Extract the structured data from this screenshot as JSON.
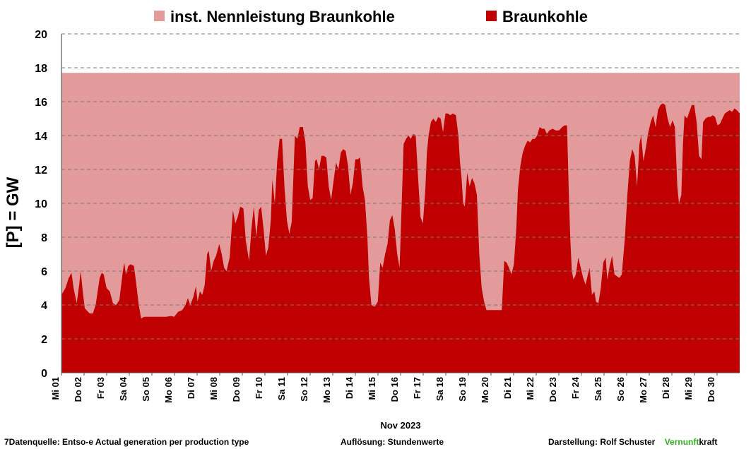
{
  "chart_data": {
    "type": "area",
    "title": "",
    "ylabel": "[P]  =  GW",
    "xlabel": "Nov 2023",
    "ylim": [
      0,
      20
    ],
    "yticks": [
      0,
      2,
      4,
      6,
      8,
      10,
      12,
      14,
      16,
      18,
      20
    ],
    "grid": "horizontal dashed",
    "legend_position": "top",
    "colors": {
      "capacity": "#e39a9a",
      "generation": "#c00000"
    },
    "x_tick_labels": [
      "Mi 01",
      "Do 02",
      "Fr 03",
      "Sa 04",
      "So 05",
      "Mo 06",
      "Di 07",
      "Mi 08",
      "Do 09",
      "Fr 10",
      "Sa 11",
      "So 12",
      "Mo 13",
      "Di 14",
      "Mi 15",
      "Do 16",
      "Fr 17",
      "Sa 18",
      "So 19",
      "Mo 20",
      "Di 21",
      "Mi 22",
      "Do 23",
      "Fr 24",
      "Sa 25",
      "So 26",
      "Mo 27",
      "Di 28",
      "Mi 29",
      "Do 30"
    ],
    "series": [
      {
        "name": "inst. Nennleistung Braunkohle",
        "kind": "constant",
        "value": 17.7
      },
      {
        "name": "Braunkohle",
        "kind": "area",
        "x_unit": "day of November 2023 (day start)",
        "points": [
          [
            0.0,
            4.6
          ],
          [
            0.1,
            5.0
          ],
          [
            0.18,
            5.6
          ],
          [
            0.25,
            5.9
          ],
          [
            0.3,
            5.0
          ],
          [
            0.38,
            4.1
          ],
          [
            0.44,
            5.2
          ],
          [
            0.48,
            6.0
          ],
          [
            0.52,
            5.0
          ],
          [
            0.58,
            3.8
          ],
          [
            0.7,
            3.5
          ],
          [
            0.78,
            3.5
          ],
          [
            0.85,
            4.0
          ],
          [
            0.95,
            5.6
          ],
          [
            1.0,
            5.9
          ],
          [
            1.05,
            5.8
          ],
          [
            1.12,
            5.0
          ],
          [
            1.2,
            4.8
          ],
          [
            1.28,
            4.1
          ],
          [
            1.36,
            4.0
          ],
          [
            1.44,
            4.3
          ],
          [
            1.52,
            5.9
          ],
          [
            1.56,
            6.5
          ],
          [
            1.6,
            5.8
          ],
          [
            1.66,
            6.3
          ],
          [
            1.72,
            6.4
          ],
          [
            1.8,
            6.3
          ],
          [
            1.86,
            5.2
          ],
          [
            1.92,
            4.0
          ],
          [
            1.98,
            3.2
          ],
          [
            2.05,
            3.3
          ],
          [
            2.15,
            3.3
          ],
          [
            2.3,
            3.3
          ],
          [
            2.45,
            3.3
          ],
          [
            2.6,
            3.3
          ],
          [
            2.72,
            3.35
          ],
          [
            2.8,
            3.3
          ],
          [
            2.9,
            3.6
          ],
          [
            3.0,
            3.7
          ],
          [
            3.08,
            4.0
          ],
          [
            3.14,
            4.4
          ],
          [
            3.2,
            4.0
          ],
          [
            3.28,
            4.5
          ],
          [
            3.34,
            5.1
          ],
          [
            3.38,
            4.2
          ],
          [
            3.44,
            4.8
          ],
          [
            3.5,
            4.6
          ],
          [
            3.56,
            5.2
          ],
          [
            3.62,
            7.0
          ],
          [
            3.66,
            7.2
          ],
          [
            3.72,
            6.0
          ],
          [
            3.78,
            6.6
          ],
          [
            3.84,
            6.9
          ],
          [
            3.92,
            7.6
          ],
          [
            3.98,
            7.0
          ],
          [
            4.04,
            6.2
          ],
          [
            4.1,
            6.0
          ],
          [
            4.18,
            6.8
          ],
          [
            4.26,
            9.6
          ],
          [
            4.32,
            8.8
          ],
          [
            4.38,
            9.2
          ],
          [
            4.44,
            9.8
          ],
          [
            4.52,
            9.7
          ],
          [
            4.58,
            7.8
          ],
          [
            4.66,
            6.6
          ],
          [
            4.72,
            8.5
          ],
          [
            4.78,
            9.8
          ],
          [
            4.84,
            8.0
          ],
          [
            4.9,
            9.6
          ],
          [
            4.96,
            9.8
          ],
          [
            5.02,
            8.5
          ],
          [
            5.08,
            6.9
          ],
          [
            5.14,
            7.4
          ],
          [
            5.2,
            9.0
          ],
          [
            5.24,
            11.4
          ],
          [
            5.3,
            10.0
          ],
          [
            5.36,
            12.5
          ],
          [
            5.42,
            13.8
          ],
          [
            5.48,
            13.8
          ],
          [
            5.54,
            11.0
          ],
          [
            5.6,
            9.0
          ],
          [
            5.66,
            8.2
          ],
          [
            5.72,
            8.9
          ],
          [
            5.8,
            14.0
          ],
          [
            5.86,
            13.8
          ],
          [
            5.92,
            14.5
          ],
          [
            6.0,
            14.5
          ],
          [
            6.06,
            13.6
          ],
          [
            6.12,
            11.0
          ],
          [
            6.18,
            10.2
          ],
          [
            6.24,
            10.3
          ],
          [
            6.3,
            12.5
          ],
          [
            6.34,
            12.6
          ],
          [
            6.4,
            12.0
          ],
          [
            6.46,
            12.8
          ],
          [
            6.52,
            12.8
          ],
          [
            6.58,
            12.7
          ],
          [
            6.64,
            11.0
          ],
          [
            6.7,
            10.2
          ],
          [
            6.76,
            11.3
          ],
          [
            6.82,
            12.4
          ],
          [
            6.88,
            12.0
          ],
          [
            6.94,
            13.0
          ],
          [
            7.0,
            13.2
          ],
          [
            7.06,
            13.1
          ],
          [
            7.12,
            12.2
          ],
          [
            7.18,
            10.5
          ],
          [
            7.24,
            11.2
          ],
          [
            7.3,
            12.6
          ],
          [
            7.36,
            12.6
          ],
          [
            7.42,
            12.7
          ],
          [
            7.48,
            11.0
          ],
          [
            7.54,
            10.2
          ],
          [
            7.6,
            8.0
          ],
          [
            7.64,
            5.6
          ],
          [
            7.7,
            4.0
          ],
          [
            7.78,
            3.9
          ],
          [
            7.86,
            4.2
          ],
          [
            7.92,
            6.5
          ],
          [
            7.98,
            6.2
          ],
          [
            8.04,
            7.0
          ],
          [
            8.1,
            7.6
          ],
          [
            8.16,
            9.0
          ],
          [
            8.22,
            9.3
          ],
          [
            8.28,
            8.5
          ],
          [
            8.34,
            7.0
          ],
          [
            8.4,
            6.2
          ],
          [
            8.46,
            10.5
          ],
          [
            8.5,
            13.5
          ],
          [
            8.56,
            13.8
          ],
          [
            8.62,
            14.0
          ],
          [
            8.68,
            13.8
          ],
          [
            8.74,
            14.1
          ],
          [
            8.8,
            14.0
          ],
          [
            8.86,
            11.5
          ],
          [
            8.92,
            9.2
          ],
          [
            8.98,
            8.8
          ],
          [
            9.04,
            10.8
          ],
          [
            9.08,
            13.0
          ],
          [
            9.12,
            14.0
          ],
          [
            9.18,
            14.8
          ],
          [
            9.24,
            15.0
          ],
          [
            9.3,
            14.8
          ],
          [
            9.36,
            15.1
          ],
          [
            9.42,
            15.0
          ],
          [
            9.48,
            14.2
          ],
          [
            9.54,
            15.3
          ],
          [
            9.6,
            15.3
          ],
          [
            9.66,
            15.2
          ],
          [
            9.72,
            15.3
          ],
          [
            9.8,
            15.2
          ],
          [
            9.86,
            14.0
          ],
          [
            9.9,
            12.5
          ],
          [
            9.94,
            11.5
          ],
          [
            9.98,
            10.0
          ],
          [
            10.02,
            9.8
          ],
          [
            10.08,
            11.8
          ],
          [
            10.14,
            11.0
          ],
          [
            10.2,
            11.5
          ],
          [
            10.26,
            11.2
          ],
          [
            10.32,
            10.5
          ],
          [
            10.38,
            7.0
          ],
          [
            10.44,
            5.0
          ],
          [
            10.5,
            4.2
          ],
          [
            10.56,
            3.7
          ],
          [
            10.66,
            3.7
          ],
          [
            10.76,
            3.7
          ],
          [
            10.86,
            3.7
          ],
          [
            10.94,
            3.7
          ],
          [
            11.0,
            6.6
          ],
          [
            11.06,
            6.5
          ],
          [
            11.12,
            6.2
          ],
          [
            11.18,
            5.8
          ],
          [
            11.24,
            6.4
          ],
          [
            11.3,
            8.5
          ],
          [
            11.34,
            10.8
          ],
          [
            11.4,
            12.2
          ],
          [
            11.46,
            13.0
          ],
          [
            11.52,
            13.4
          ],
          [
            11.58,
            13.7
          ],
          [
            11.64,
            13.6
          ],
          [
            11.7,
            13.8
          ],
          [
            11.76,
            13.8
          ],
          [
            11.82,
            14.0
          ],
          [
            11.88,
            14.5
          ],
          [
            11.94,
            14.4
          ],
          [
            12.0,
            14.4
          ],
          [
            12.06,
            14.1
          ],
          [
            12.12,
            14.3
          ],
          [
            12.2,
            14.4
          ],
          [
            12.28,
            14.3
          ],
          [
            12.36,
            14.3
          ],
          [
            12.44,
            14.5
          ],
          [
            12.5,
            14.6
          ],
          [
            12.56,
            14.6
          ],
          [
            12.6,
            11.0
          ],
          [
            12.64,
            8.0
          ],
          [
            12.68,
            6.0
          ],
          [
            12.72,
            5.5
          ],
          [
            12.78,
            5.8
          ],
          [
            12.84,
            6.8
          ],
          [
            12.9,
            6.2
          ],
          [
            12.96,
            5.6
          ],
          [
            13.02,
            5.2
          ],
          [
            13.08,
            5.8
          ],
          [
            13.12,
            6.2
          ],
          [
            13.18,
            4.6
          ],
          [
            13.24,
            4.8
          ],
          [
            13.28,
            4.2
          ],
          [
            13.34,
            4.1
          ],
          [
            13.4,
            5.0
          ],
          [
            13.46,
            6.5
          ],
          [
            13.52,
            6.8
          ],
          [
            13.56,
            5.5
          ],
          [
            13.62,
            6.3
          ],
          [
            13.68,
            6.9
          ],
          [
            13.74,
            5.8
          ],
          [
            13.8,
            5.7
          ],
          [
            13.86,
            5.6
          ],
          [
            13.92,
            5.8
          ],
          [
            14.0,
            8.0
          ],
          [
            14.06,
            10.5
          ],
          [
            14.12,
            12.5
          ],
          [
            14.18,
            13.2
          ],
          [
            14.24,
            12.8
          ],
          [
            14.3,
            11.0
          ],
          [
            14.36,
            13.5
          ],
          [
            14.4,
            14.0
          ],
          [
            14.46,
            12.5
          ],
          [
            14.52,
            13.3
          ],
          [
            14.58,
            14.2
          ],
          [
            14.64,
            14.8
          ],
          [
            14.7,
            15.2
          ],
          [
            14.76,
            14.5
          ],
          [
            14.82,
            15.5
          ],
          [
            14.88,
            15.8
          ],
          [
            14.94,
            15.9
          ],
          [
            15.0,
            15.8
          ],
          [
            15.06,
            15.0
          ],
          [
            15.12,
            14.5
          ],
          [
            15.18,
            14.9
          ],
          [
            15.24,
            14.5
          ],
          [
            15.3,
            11.0
          ],
          [
            15.34,
            10.0
          ],
          [
            15.4,
            10.5
          ],
          [
            15.44,
            13.5
          ],
          [
            15.48,
            15.2
          ],
          [
            15.54,
            15.0
          ],
          [
            15.6,
            15.4
          ],
          [
            15.66,
            15.8
          ],
          [
            15.72,
            15.8
          ],
          [
            15.78,
            14.8
          ],
          [
            15.84,
            12.8
          ],
          [
            15.9,
            12.6
          ],
          [
            15.94,
            14.8
          ],
          [
            16.0,
            15.0
          ],
          [
            16.06,
            15.1
          ],
          [
            16.12,
            15.1
          ],
          [
            16.18,
            15.2
          ],
          [
            16.24,
            15.1
          ],
          [
            16.3,
            14.6
          ],
          [
            16.36,
            14.7
          ],
          [
            16.42,
            15.0
          ],
          [
            16.48,
            15.3
          ],
          [
            16.54,
            15.4
          ],
          [
            16.6,
            15.5
          ],
          [
            16.66,
            15.4
          ],
          [
            16.72,
            15.6
          ],
          [
            16.78,
            15.5
          ],
          [
            16.85,
            15.3
          ]
        ]
      }
    ]
  },
  "footer": {
    "source": "7Datenquelle: Entso-e  Actual generation per production type",
    "resolution": "Auflösung: Stundenwerte",
    "credit": "Darstellung:  Rolf Schuster",
    "brand_a": "Vernunft",
    "brand_b": "kraft"
  }
}
